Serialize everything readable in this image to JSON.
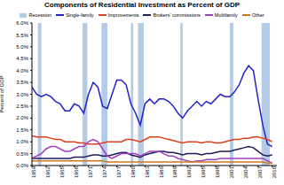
{
  "chart_data": {
    "type": "line",
    "title": "Components of Residential Investment as Percent of GDP",
    "y_label": "Percent of GDP",
    "x": [
      1959,
      1960,
      1961,
      1962,
      1963,
      1964,
      1965,
      1966,
      1967,
      1968,
      1969,
      1970,
      1971,
      1972,
      1973,
      1974,
      1975,
      1976,
      1977,
      1978,
      1979,
      1980,
      1981,
      1982,
      1983,
      1984,
      1985,
      1986,
      1987,
      1988,
      1989,
      1990,
      1991,
      1992,
      1993,
      1994,
      1995,
      1996,
      1997,
      1998,
      1999,
      2000,
      2001,
      2002,
      2003,
      2004,
      2005,
      2006,
      2007,
      2008,
      2009,
      2010
    ],
    "xlim": [
      1959,
      2011
    ],
    "xticks": [
      1959,
      1962,
      1965,
      1968,
      1971,
      1974,
      1977,
      1980,
      1983,
      1986,
      1989,
      1992,
      1995,
      1998,
      2001,
      2004,
      2007,
      2010
    ],
    "ylim": [
      0,
      6
    ],
    "yticks": [
      {
        "value": 0,
        "label": "0.0%"
      },
      {
        "value": 0.5,
        "label": "0.5%"
      },
      {
        "value": 1,
        "label": "1.0%"
      },
      {
        "value": 1.5,
        "label": "1.5%"
      },
      {
        "value": 2,
        "label": "2.0%"
      },
      {
        "value": 2.5,
        "label": "2.5%"
      },
      {
        "value": 3,
        "label": "3.0%"
      },
      {
        "value": 3.5,
        "label": "3.5%"
      },
      {
        "value": 4,
        "label": "4.0%"
      },
      {
        "value": 4.5,
        "label": "4.5%"
      },
      {
        "value": 5,
        "label": "5.0%"
      },
      {
        "value": 5.5,
        "label": "5.5%"
      },
      {
        "value": 6,
        "label": "6.0%"
      }
    ],
    "legend": "top",
    "recessions": {
      "name": "Recession",
      "color": "#b4cbe8",
      "ranges": [
        [
          1960.25,
          1961.0
        ],
        [
          1969.75,
          1970.75
        ],
        [
          1973.75,
          1975.0
        ],
        [
          1980.0,
          1980.5
        ],
        [
          1981.5,
          1982.75
        ],
        [
          1990.5,
          1991.0
        ],
        [
          2001.0,
          2001.75
        ],
        [
          2007.75,
          2009.5
        ]
      ]
    },
    "series": [
      {
        "name": "Single-family",
        "color": "#2323c8",
        "values": [
          3.3,
          3.0,
          2.9,
          3.0,
          2.9,
          2.7,
          2.6,
          2.3,
          2.3,
          2.6,
          2.5,
          2.2,
          3.0,
          3.5,
          3.3,
          2.5,
          2.4,
          3.0,
          3.6,
          3.6,
          3.4,
          2.6,
          2.2,
          1.7,
          2.6,
          2.8,
          2.6,
          2.8,
          2.8,
          2.7,
          2.5,
          2.2,
          2.0,
          2.3,
          2.5,
          2.7,
          2.5,
          2.7,
          2.6,
          2.8,
          3.0,
          2.9,
          2.9,
          3.1,
          3.4,
          3.9,
          4.2,
          4.0,
          2.8,
          1.7,
          0.9,
          0.8
        ]
      },
      {
        "name": "Improvements",
        "color": "#e0401c",
        "values": [
          1.25,
          1.2,
          1.2,
          1.2,
          1.15,
          1.1,
          1.1,
          1.0,
          1.0,
          1.0,
          0.95,
          0.95,
          0.9,
          0.9,
          0.9,
          0.95,
          1.0,
          1.0,
          1.0,
          1.0,
          1.1,
          1.1,
          1.05,
          1.0,
          1.1,
          1.2,
          1.2,
          1.2,
          1.15,
          1.1,
          1.05,
          1.0,
          0.95,
          1.0,
          1.0,
          1.0,
          0.95,
          1.0,
          1.0,
          0.95,
          0.95,
          1.0,
          1.05,
          1.1,
          1.1,
          1.15,
          1.15,
          1.2,
          1.2,
          1.15,
          1.1,
          1.0
        ]
      },
      {
        "name": "Brokers' commissions",
        "color": "#1c1c5a",
        "values": [
          0.3,
          0.3,
          0.3,
          0.3,
          0.3,
          0.3,
          0.3,
          0.3,
          0.3,
          0.35,
          0.35,
          0.35,
          0.4,
          0.45,
          0.45,
          0.4,
          0.4,
          0.45,
          0.5,
          0.55,
          0.55,
          0.45,
          0.4,
          0.35,
          0.45,
          0.5,
          0.55,
          0.6,
          0.6,
          0.55,
          0.55,
          0.5,
          0.45,
          0.5,
          0.5,
          0.5,
          0.45,
          0.5,
          0.5,
          0.55,
          0.6,
          0.6,
          0.6,
          0.65,
          0.7,
          0.75,
          0.8,
          0.75,
          0.6,
          0.45,
          0.4,
          0.45
        ]
      },
      {
        "name": "Multifamily",
        "color": "#a040c0",
        "values": [
          0.3,
          0.4,
          0.5,
          0.7,
          0.8,
          0.8,
          0.7,
          0.6,
          0.6,
          0.7,
          0.8,
          0.8,
          1.0,
          1.1,
          1.0,
          0.7,
          0.4,
          0.3,
          0.4,
          0.5,
          0.5,
          0.5,
          0.5,
          0.4,
          0.5,
          0.6,
          0.6,
          0.6,
          0.5,
          0.4,
          0.4,
          0.3,
          0.25,
          0.2,
          0.15,
          0.2,
          0.2,
          0.25,
          0.25,
          0.25,
          0.3,
          0.3,
          0.3,
          0.3,
          0.3,
          0.3,
          0.3,
          0.3,
          0.3,
          0.3,
          0.2,
          0.1
        ]
      },
      {
        "name": "Other",
        "color": "#d07820",
        "values": [
          0.2,
          0.2,
          0.2,
          0.2,
          0.2,
          0.2,
          0.2,
          0.2,
          0.2,
          0.2,
          0.2,
          0.2,
          0.2,
          0.2,
          0.2,
          0.2,
          0.15,
          0.15,
          0.15,
          0.15,
          0.15,
          0.15,
          0.15,
          0.15,
          0.15,
          0.15,
          0.15,
          0.15,
          0.15,
          0.15,
          0.15,
          0.15,
          0.15,
          0.15,
          0.15,
          0.15,
          0.15,
          0.15,
          0.15,
          0.15,
          0.15,
          0.15,
          0.15,
          0.15,
          0.15,
          0.15,
          0.15,
          0.15,
          0.15,
          0.15,
          0.1,
          0.1
        ]
      }
    ]
  }
}
